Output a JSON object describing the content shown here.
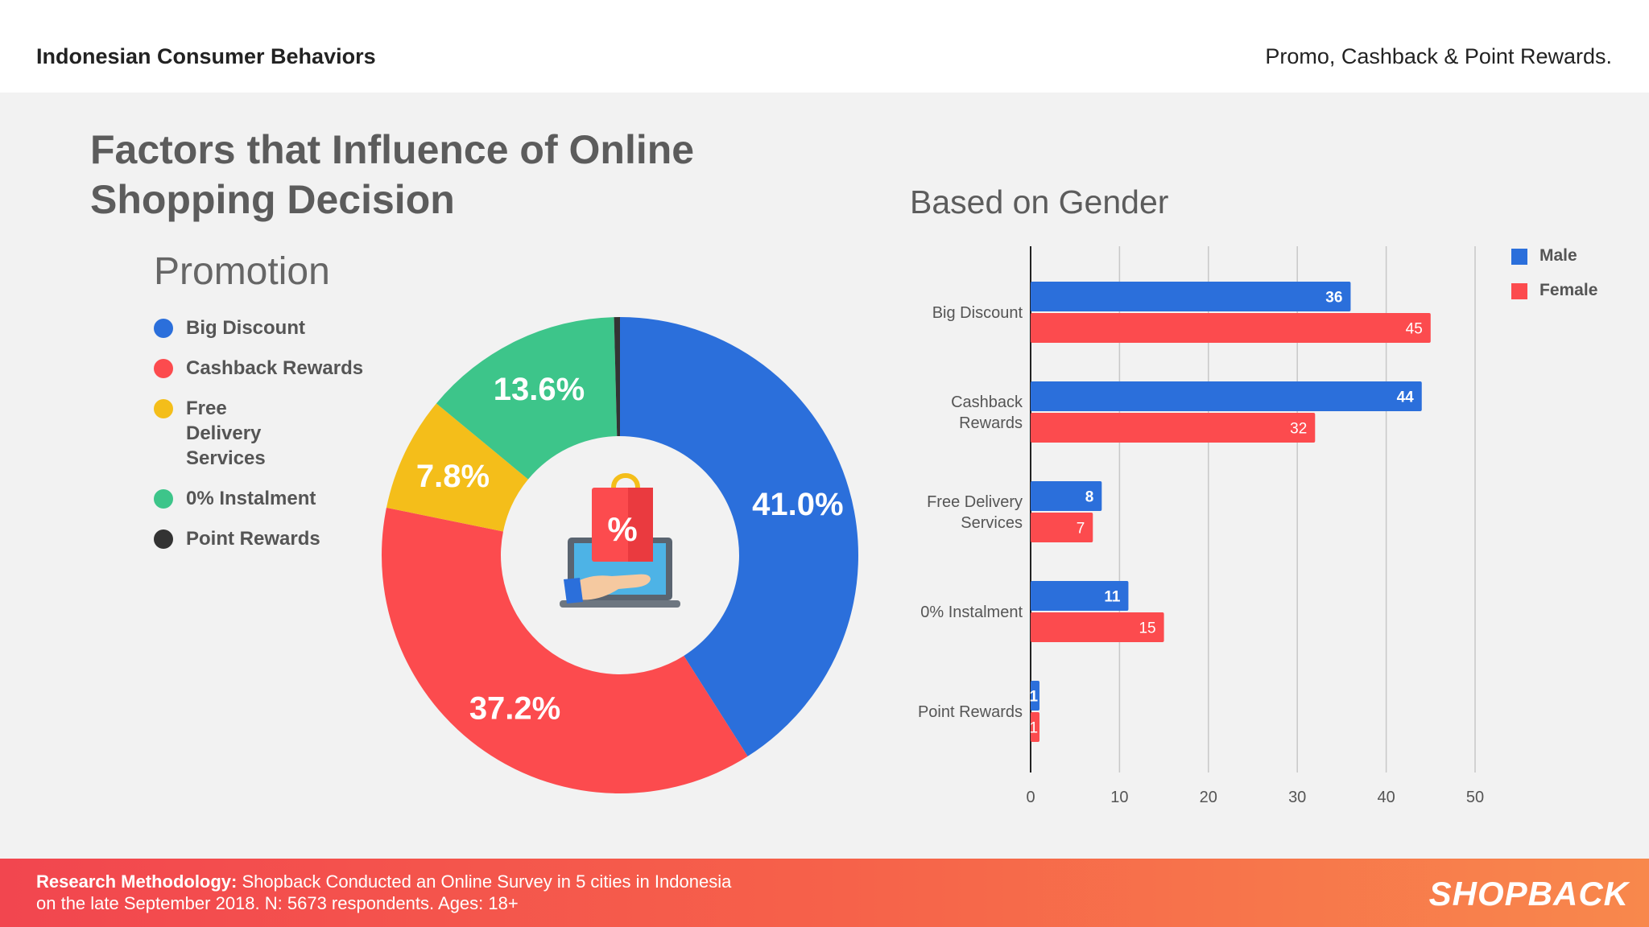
{
  "header": {
    "left_title": "Indonesian Consumer Behaviors",
    "right_title": "Promo, Cashback & Point Rewards."
  },
  "main_title": "Factors that Influence of Online Shopping Decision",
  "promotion_title": "Promotion",
  "gender_title": "Based on Gender",
  "legend": [
    {
      "label": "Big Discount",
      "color": "#2b6fdb"
    },
    {
      "label": "Cashback Rewards",
      "color": "#fc4b4e"
    },
    {
      "label": "Free Delivery Services",
      "color": "#f4be1a"
    },
    {
      "label": "0% Instalment",
      "color": "#3dc58a"
    },
    {
      "label": "Point Rewards",
      "color": "#333333"
    }
  ],
  "gender_legend": [
    {
      "label": "Male",
      "color": "#2b6fdb"
    },
    {
      "label": "Female",
      "color": "#fc4b4e"
    }
  ],
  "chart_data": [
    {
      "type": "pie",
      "donut": true,
      "categories": [
        "Big Discount",
        "Cashback Rewards",
        "Free Delivery Services",
        "0% Instalment",
        "Point Rewards"
      ],
      "values": [
        41.0,
        37.2,
        7.8,
        13.6,
        0.4
      ],
      "labels": [
        "41.0%",
        "37.2%",
        "7.8%",
        "13.6%",
        ""
      ],
      "colors": [
        "#2b6fdb",
        "#fc4b4e",
        "#f4be1a",
        "#3dc58a",
        "#333333"
      ]
    },
    {
      "type": "bar",
      "orientation": "horizontal",
      "categories": [
        "Big Discount",
        "Cashback Rewards",
        "Free Delivery Services",
        "0% Instalment",
        "Point Rewards"
      ],
      "category_lines": [
        [
          "Big Discount"
        ],
        [
          "Cashback",
          "Rewards"
        ],
        [
          "Free Delivery",
          "Services"
        ],
        [
          "0% Instalment"
        ],
        [
          "Point Rewards"
        ]
      ],
      "series": [
        {
          "name": "Male",
          "values": [
            36,
            44,
            8,
            11,
            1
          ],
          "color": "#2b6fdb"
        },
        {
          "name": "Female",
          "values": [
            45,
            32,
            7,
            15,
            1
          ],
          "color": "#fc4b4e"
        }
      ],
      "xlim": [
        0,
        50
      ],
      "xticks": [
        0,
        10,
        20,
        30,
        40,
        50
      ],
      "grid": true,
      "legend": "top-right"
    }
  ],
  "footer": {
    "label": "Research Methodology:",
    "text_line1": " Shopback Conducted an Online Survey in 5 cities in Indonesia",
    "text_line2": "on the late September 2018. N: 5673 respondents. Ages: 18+",
    "brand": "SHOPBACK"
  }
}
